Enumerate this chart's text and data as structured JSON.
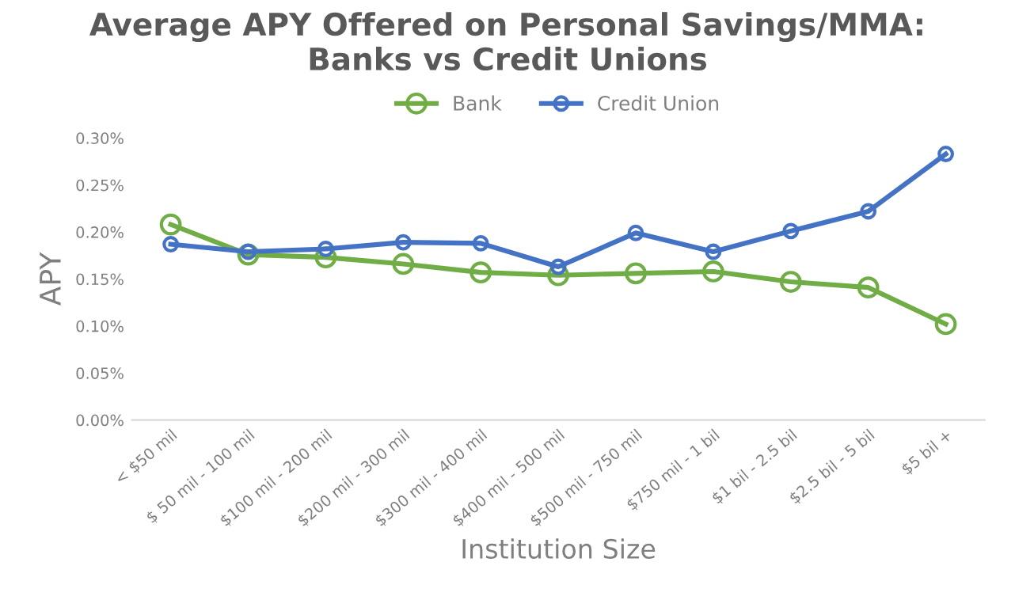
{
  "chart_data": {
    "type": "line",
    "title": "Average APY Offered on Personal Savings/MMA:\nBanks vs Credit Unions",
    "xlabel": "Institution Size",
    "ylabel": "APY",
    "categories": [
      "< $50 mil",
      "$ 50 mil - 100 mil",
      "$100 mil - 200 mil",
      "$200 mil - 300 mil",
      "$300 mil - 400 mil",
      "$400 mil - 500 mil",
      "$500 mil - 750 mil",
      "$750 mil - 1 bil",
      "$1 bil - 2.5 bil",
      "$2.5 bil - 5 bil",
      "$5 bil +"
    ],
    "series": [
      {
        "name": "Bank",
        "color": "#70ad47",
        "values": [
          0.208,
          0.176,
          0.173,
          0.166,
          0.157,
          0.154,
          0.156,
          0.158,
          0.147,
          0.141,
          0.102
        ]
      },
      {
        "name": "Credit Union",
        "color": "#4472c4",
        "values": [
          0.187,
          0.179,
          0.182,
          0.189,
          0.188,
          0.163,
          0.199,
          0.179,
          0.201,
          0.222,
          0.283
        ]
      }
    ],
    "ylim": [
      0,
      0.3
    ],
    "yticks": [
      {
        "value": 0,
        "label": "0.00%"
      },
      {
        "value": 0.05,
        "label": "0.05%"
      },
      {
        "value": 0.1,
        "label": "0.10%"
      },
      {
        "value": 0.15,
        "label": "0.15%"
      },
      {
        "value": 0.2,
        "label": "0.20%"
      },
      {
        "value": 0.25,
        "label": "0.25%"
      },
      {
        "value": 0.3,
        "label": "0.30%"
      }
    ],
    "grid": false,
    "legend": "top",
    "marker": "circle",
    "line_style": "solid"
  }
}
